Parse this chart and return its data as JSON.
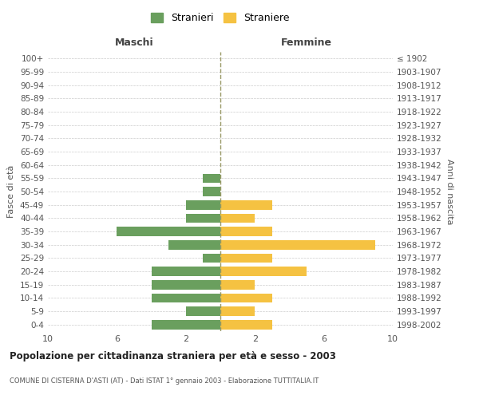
{
  "age_groups": [
    "0-4",
    "5-9",
    "10-14",
    "15-19",
    "20-24",
    "25-29",
    "30-34",
    "35-39",
    "40-44",
    "45-49",
    "50-54",
    "55-59",
    "60-64",
    "65-69",
    "70-74",
    "75-79",
    "80-84",
    "85-89",
    "90-94",
    "95-99",
    "100+"
  ],
  "birth_years": [
    "1998-2002",
    "1993-1997",
    "1988-1992",
    "1983-1987",
    "1978-1982",
    "1973-1977",
    "1968-1972",
    "1963-1967",
    "1958-1962",
    "1953-1957",
    "1948-1952",
    "1943-1947",
    "1938-1942",
    "1933-1937",
    "1928-1932",
    "1923-1927",
    "1918-1922",
    "1913-1917",
    "1908-1912",
    "1903-1907",
    "≤ 1902"
  ],
  "maschi": [
    4,
    2,
    4,
    4,
    4,
    1,
    3,
    6,
    2,
    2,
    1,
    1,
    0,
    0,
    0,
    0,
    0,
    0,
    0,
    0,
    0
  ],
  "femmine": [
    3,
    2,
    3,
    2,
    5,
    3,
    9,
    3,
    2,
    3,
    0,
    0,
    0,
    0,
    0,
    0,
    0,
    0,
    0,
    0,
    0
  ],
  "maschi_color": "#6a9f5e",
  "femmine_color": "#f5c242",
  "dashed_line_color": "#999966",
  "bg_color": "#ffffff",
  "grid_color": "#cccccc",
  "xlim": 10,
  "title": "Popolazione per cittadinanza straniera per età e sesso - 2003",
  "subtitle": "COMUNE DI CISTERNA D'ASTI (AT) - Dati ISTAT 1° gennaio 2003 - Elaborazione TUTTITALIA.IT",
  "xlabel_left": "Maschi",
  "xlabel_right": "Femmine",
  "ylabel_left": "Fasce di età",
  "ylabel_right": "Anni di nascita",
  "legend_stranieri": "Stranieri",
  "legend_straniere": "Straniere"
}
